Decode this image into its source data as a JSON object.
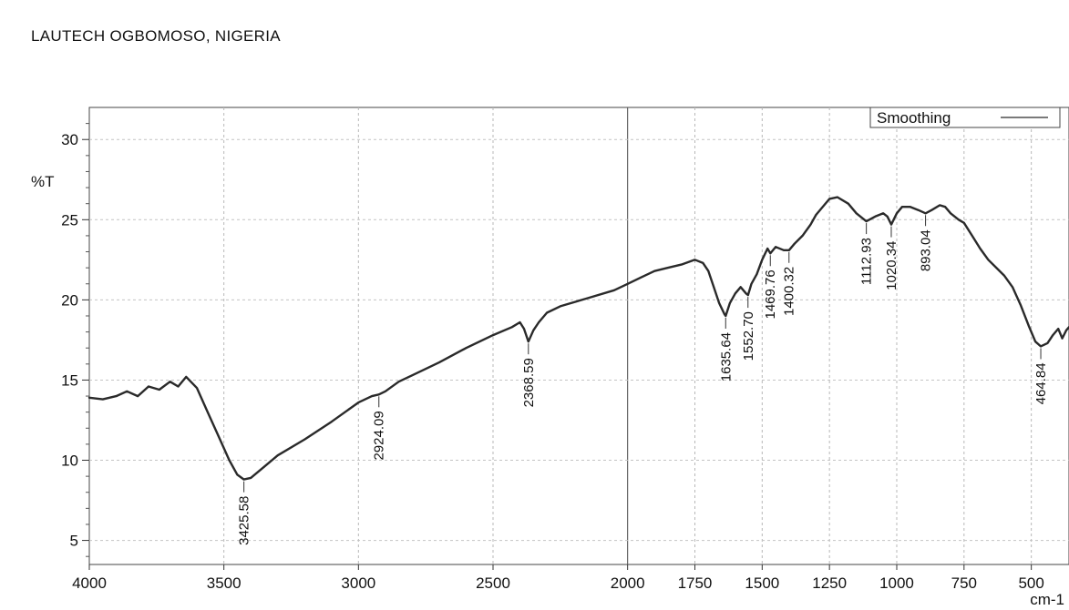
{
  "header": {
    "title": "LAUTECH OGBOMOSO, NIGERIA"
  },
  "chart_data": {
    "type": "line",
    "ylabel": "%T",
    "xunit": "cm-1",
    "xlim": [
      4000,
      360
    ],
    "ylim": [
      3.5,
      32
    ],
    "xticks": [
      4000,
      3500,
      3000,
      2500,
      2000,
      1750,
      1500,
      1250,
      1000,
      750,
      500
    ],
    "yticks": [
      5,
      10,
      15,
      20,
      25,
      30
    ],
    "grid": true,
    "legend": {
      "position": "top-right",
      "entries": [
        "Smoothing"
      ]
    },
    "series": [
      {
        "name": "Smoothing",
        "points": [
          [
            4000,
            13.9
          ],
          [
            3950,
            13.8
          ],
          [
            3900,
            14.0
          ],
          [
            3860,
            14.3
          ],
          [
            3820,
            14.0
          ],
          [
            3780,
            14.6
          ],
          [
            3740,
            14.4
          ],
          [
            3700,
            14.9
          ],
          [
            3670,
            14.6
          ],
          [
            3640,
            15.2
          ],
          [
            3600,
            14.5
          ],
          [
            3560,
            13.0
          ],
          [
            3520,
            11.5
          ],
          [
            3480,
            10.0
          ],
          [
            3450,
            9.1
          ],
          [
            3425.58,
            8.8
          ],
          [
            3400,
            8.9
          ],
          [
            3350,
            9.6
          ],
          [
            3300,
            10.3
          ],
          [
            3200,
            11.3
          ],
          [
            3100,
            12.4
          ],
          [
            3000,
            13.6
          ],
          [
            2950,
            14.0
          ],
          [
            2924.09,
            14.1
          ],
          [
            2900,
            14.3
          ],
          [
            2850,
            14.9
          ],
          [
            2800,
            15.3
          ],
          [
            2700,
            16.1
          ],
          [
            2600,
            17.0
          ],
          [
            2500,
            17.8
          ],
          [
            2430,
            18.3
          ],
          [
            2400,
            18.6
          ],
          [
            2385,
            18.2
          ],
          [
            2368.59,
            17.4
          ],
          [
            2350,
            18.1
          ],
          [
            2330,
            18.6
          ],
          [
            2300,
            19.2
          ],
          [
            2250,
            19.6
          ],
          [
            2150,
            20.1
          ],
          [
            2050,
            20.6
          ],
          [
            2000,
            21.0
          ],
          [
            1950,
            21.4
          ],
          [
            1900,
            21.8
          ],
          [
            1850,
            22.0
          ],
          [
            1800,
            22.2
          ],
          [
            1750,
            22.5
          ],
          [
            1720,
            22.3
          ],
          [
            1700,
            21.8
          ],
          [
            1680,
            20.8
          ],
          [
            1660,
            19.8
          ],
          [
            1640,
            19.1
          ],
          [
            1635.64,
            19.0
          ],
          [
            1620,
            19.8
          ],
          [
            1600,
            20.4
          ],
          [
            1580,
            20.8
          ],
          [
            1560,
            20.4
          ],
          [
            1552.7,
            20.3
          ],
          [
            1540,
            21.0
          ],
          [
            1520,
            21.6
          ],
          [
            1500,
            22.5
          ],
          [
            1480,
            23.2
          ],
          [
            1469.76,
            22.9
          ],
          [
            1450,
            23.3
          ],
          [
            1420,
            23.1
          ],
          [
            1400.32,
            23.1
          ],
          [
            1380,
            23.5
          ],
          [
            1350,
            24.0
          ],
          [
            1320,
            24.7
          ],
          [
            1300,
            25.3
          ],
          [
            1270,
            25.9
          ],
          [
            1250,
            26.3
          ],
          [
            1220,
            26.4
          ],
          [
            1180,
            26.0
          ],
          [
            1150,
            25.4
          ],
          [
            1112.93,
            24.9
          ],
          [
            1080,
            25.2
          ],
          [
            1050,
            25.4
          ],
          [
            1035,
            25.2
          ],
          [
            1020.34,
            24.7
          ],
          [
            1000,
            25.4
          ],
          [
            980,
            25.8
          ],
          [
            950,
            25.8
          ],
          [
            920,
            25.6
          ],
          [
            893.04,
            25.4
          ],
          [
            870,
            25.6
          ],
          [
            840,
            25.9
          ],
          [
            820,
            25.8
          ],
          [
            800,
            25.4
          ],
          [
            770,
            25.0
          ],
          [
            750,
            24.8
          ],
          [
            720,
            24.0
          ],
          [
            690,
            23.2
          ],
          [
            660,
            22.5
          ],
          [
            630,
            22.0
          ],
          [
            600,
            21.5
          ],
          [
            570,
            20.8
          ],
          [
            540,
            19.7
          ],
          [
            510,
            18.4
          ],
          [
            485,
            17.4
          ],
          [
            464.84,
            17.1
          ],
          [
            440,
            17.3
          ],
          [
            420,
            17.8
          ],
          [
            400,
            18.2
          ],
          [
            385,
            17.6
          ],
          [
            370,
            18.1
          ],
          [
            360,
            18.3
          ]
        ]
      }
    ],
    "annotations": [
      {
        "label": "3425.58",
        "x": 3425.58,
        "y": 8.8,
        "side": "below"
      },
      {
        "label": "2924.09",
        "x": 2924.09,
        "y": 14.1,
        "side": "below"
      },
      {
        "label": "2368.59",
        "x": 2368.59,
        "y": 17.4,
        "side": "below"
      },
      {
        "label": "1635.64",
        "x": 1635.64,
        "y": 19.0,
        "side": "below"
      },
      {
        "label": "1552.70",
        "x": 1552.7,
        "y": 20.3,
        "side": "below"
      },
      {
        "label": "1469.76",
        "x": 1469.76,
        "y": 22.9,
        "side": "below"
      },
      {
        "label": "1400.32",
        "x": 1400.32,
        "y": 23.1,
        "side": "below"
      },
      {
        "label": "1112.93",
        "x": 1112.93,
        "y": 24.9,
        "side": "below"
      },
      {
        "label": "1020.34",
        "x": 1020.34,
        "y": 24.7,
        "side": "below"
      },
      {
        "label": "893.04",
        "x": 893.04,
        "y": 25.4,
        "side": "below"
      },
      {
        "label": "464.84",
        "x": 464.84,
        "y": 17.1,
        "side": "below"
      }
    ]
  }
}
